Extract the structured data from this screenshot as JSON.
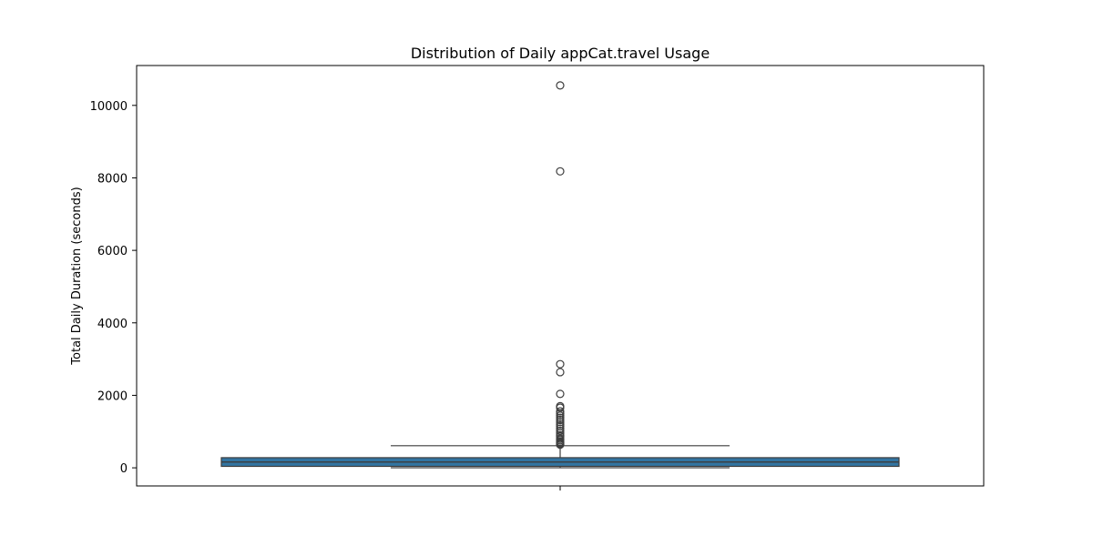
{
  "chart_data": {
    "type": "box",
    "title": "Distribution of Daily appCat.travel Usage",
    "xlabel": "",
    "ylabel": "Total Daily Duration (seconds)",
    "ylim": [
      -500,
      11100
    ],
    "yticks": [
      0,
      2000,
      4000,
      6000,
      8000,
      10000
    ],
    "grid": false,
    "box": {
      "color": "#3274a1",
      "q1": 40,
      "median": 160,
      "q3": 280,
      "whisker_low": 0,
      "whisker_high": 610
    },
    "outliers": [
      10550,
      8180,
      2860,
      2640,
      2040,
      1700,
      1660,
      1560,
      1500,
      1440,
      1380,
      1320,
      1260,
      1200,
      1150,
      1080,
      1020,
      960,
      900,
      860,
      800,
      760,
      720,
      690,
      660,
      640
    ]
  }
}
